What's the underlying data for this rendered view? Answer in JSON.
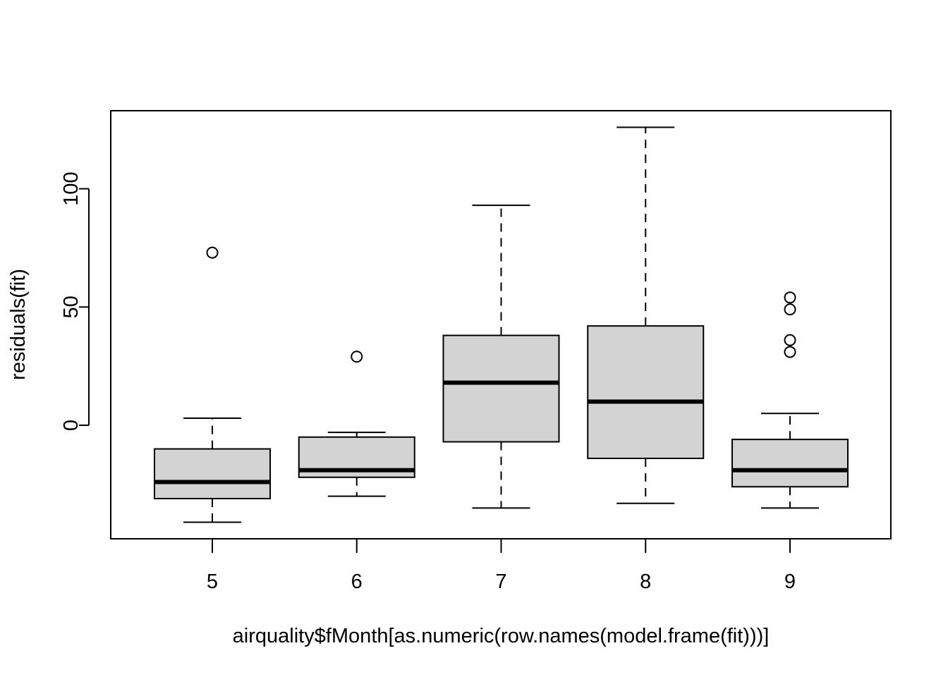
{
  "chart_data": {
    "type": "box",
    "title": "",
    "xlabel": "airquality$fMonth[as.numeric(row.names(model.frame(fit)))]",
    "ylabel": "residuals(fit)",
    "categories": [
      "5",
      "6",
      "7",
      "8",
      "9"
    ],
    "ylim": [
      -48,
      133
    ],
    "y_ticks": [
      0,
      50,
      100
    ],
    "grid": false,
    "legend": "none",
    "box_fill": "#d3d3d3",
    "stroke": "#000000",
    "boxes": [
      {
        "category": "5",
        "whisker_low": -41,
        "q1": -31,
        "median": -24,
        "q3": -10,
        "whisker_high": 3,
        "outliers": [
          73
        ]
      },
      {
        "category": "6",
        "whisker_low": -30,
        "q1": -22,
        "median": -19,
        "q3": -5,
        "whisker_high": -3,
        "outliers": [
          29
        ]
      },
      {
        "category": "7",
        "whisker_low": -35,
        "q1": -7,
        "median": 18,
        "q3": 38,
        "whisker_high": 93,
        "outliers": []
      },
      {
        "category": "8",
        "whisker_low": -33,
        "q1": -14,
        "median": 10,
        "q3": 42,
        "whisker_high": 126,
        "outliers": []
      },
      {
        "category": "9",
        "whisker_low": -35,
        "q1": -26,
        "median": -19,
        "q3": -6,
        "whisker_high": 5,
        "outliers": [
          31,
          36,
          49,
          54
        ]
      }
    ]
  }
}
